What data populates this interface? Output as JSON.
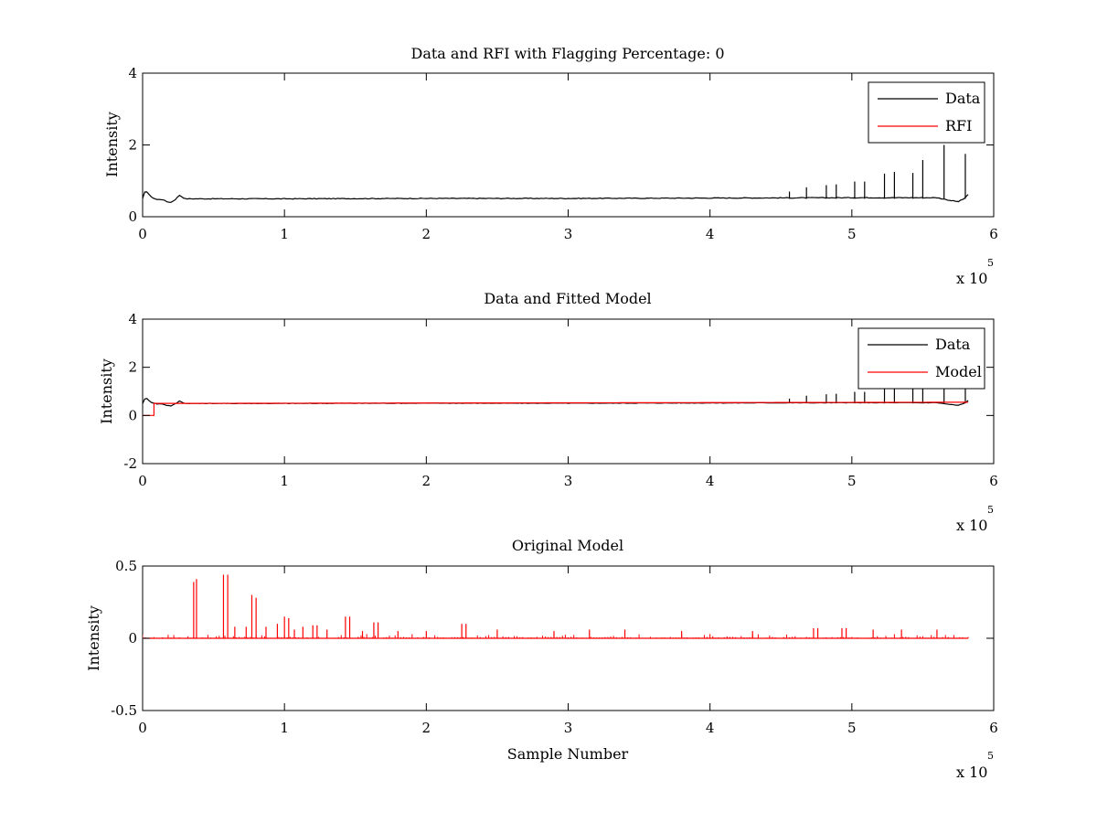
{
  "chart_data": [
    {
      "type": "line",
      "title": "Data and RFI with Flagging Percentage: 0",
      "xlabel": "",
      "ylabel": "Intensity",
      "xlim": [
        0,
        600000
      ],
      "ylim": [
        0,
        4
      ],
      "xticks": [
        "0",
        "1",
        "2",
        "3",
        "4",
        "5",
        "6"
      ],
      "yticks": [
        "0",
        "2",
        "4"
      ],
      "x_multiplier": {
        "base": "x 10",
        "exp": "5"
      },
      "grid": false,
      "legend": {
        "position": "top-right",
        "entries": [
          "Data",
          "RFI"
        ]
      },
      "series": [
        {
          "name": "Data",
          "color": "#000000",
          "baseline": 0.5,
          "x": [
            0,
            1500,
            3000,
            6000,
            10000,
            14000,
            17000,
            20000,
            23000,
            26000,
            30000,
            100000,
            200000,
            300000,
            400000,
            500000,
            560000,
            570000,
            575000,
            579000,
            582000
          ],
          "values": [
            0.5,
            0.68,
            0.7,
            0.55,
            0.48,
            0.48,
            0.42,
            0.4,
            0.48,
            0.6,
            0.5,
            0.5,
            0.51,
            0.51,
            0.52,
            0.53,
            0.53,
            0.45,
            0.42,
            0.5,
            0.62
          ],
          "spikes": [
            {
              "x": 456000,
              "y": 0.7
            },
            {
              "x": 468000,
              "y": 0.82
            },
            {
              "x": 482000,
              "y": 0.88
            },
            {
              "x": 489000,
              "y": 0.9
            },
            {
              "x": 502000,
              "y": 0.98
            },
            {
              "x": 509000,
              "y": 0.98
            },
            {
              "x": 523000,
              "y": 1.2
            },
            {
              "x": 530000,
              "y": 1.25
            },
            {
              "x": 543000,
              "y": 1.22
            },
            {
              "x": 550000,
              "y": 1.58
            },
            {
              "x": 565000,
              "y": 2.0
            },
            {
              "x": 580000,
              "y": 1.75
            }
          ]
        },
        {
          "name": "RFI",
          "color": "#ff0000",
          "values": []
        }
      ]
    },
    {
      "type": "line",
      "title": "Data and Fitted Model",
      "xlabel": "",
      "ylabel": "Intensity",
      "xlim": [
        0,
        600000
      ],
      "ylim": [
        -2,
        4
      ],
      "xticks": [
        "0",
        "1",
        "2",
        "3",
        "4",
        "5",
        "6"
      ],
      "yticks": [
        "-2",
        "0",
        "2",
        "4"
      ],
      "x_multiplier": {
        "base": "x 10",
        "exp": "5"
      },
      "grid": false,
      "legend": {
        "position": "top-right",
        "entries": [
          "Data",
          "Model"
        ]
      },
      "series": [
        {
          "name": "Data",
          "color": "#000000",
          "x": [
            0,
            1500,
            3000,
            6000,
            10000,
            14000,
            17000,
            20000,
            23000,
            26000,
            30000,
            100000,
            200000,
            300000,
            400000,
            500000,
            560000,
            570000,
            575000,
            579000,
            582000
          ],
          "values": [
            0.5,
            0.68,
            0.7,
            0.55,
            0.48,
            0.48,
            0.42,
            0.4,
            0.48,
            0.6,
            0.5,
            0.5,
            0.51,
            0.51,
            0.52,
            0.53,
            0.53,
            0.45,
            0.42,
            0.5,
            0.62
          ],
          "spikes": [
            {
              "x": 456000,
              "y": 0.7
            },
            {
              "x": 468000,
              "y": 0.82
            },
            {
              "x": 482000,
              "y": 0.88
            },
            {
              "x": 489000,
              "y": 0.9
            },
            {
              "x": 502000,
              "y": 0.98
            },
            {
              "x": 509000,
              "y": 0.98
            },
            {
              "x": 523000,
              "y": 1.2
            },
            {
              "x": 530000,
              "y": 1.25
            },
            {
              "x": 543000,
              "y": 1.22
            },
            {
              "x": 550000,
              "y": 1.58
            },
            {
              "x": 565000,
              "y": 2.0
            },
            {
              "x": 580000,
              "y": 1.75
            }
          ]
        },
        {
          "name": "Model",
          "color": "#ff0000",
          "x": [
            0,
            8000,
            8000,
            582000
          ],
          "values": [
            0.0,
            0.0,
            0.5,
            0.55
          ]
        }
      ]
    },
    {
      "type": "line",
      "title": "Original Model",
      "xlabel": "Sample Number",
      "ylabel": "Intensity",
      "xlim": [
        0,
        600000
      ],
      "ylim": [
        -0.5,
        0.5
      ],
      "xticks": [
        "0",
        "1",
        "2",
        "3",
        "4",
        "5",
        "6"
      ],
      "yticks": [
        "-0.5",
        "0",
        "0.5"
      ],
      "x_multiplier": {
        "base": "x 10",
        "exp": "5"
      },
      "grid": false,
      "series": [
        {
          "color": "#ff0000",
          "baseline": 0.0,
          "x_range": [
            0,
            582000
          ],
          "spikes": [
            {
              "x": 36000,
              "y": 0.39
            },
            {
              "x": 38000,
              "y": 0.41
            },
            {
              "x": 57000,
              "y": 0.44
            },
            {
              "x": 60000,
              "y": 0.44
            },
            {
              "x": 77000,
              "y": 0.3
            },
            {
              "x": 80000,
              "y": 0.28
            },
            {
              "x": 65000,
              "y": 0.08
            },
            {
              "x": 73000,
              "y": 0.08
            },
            {
              "x": 87000,
              "y": 0.08
            },
            {
              "x": 95000,
              "y": 0.1
            },
            {
              "x": 100000,
              "y": 0.15
            },
            {
              "x": 103000,
              "y": 0.14
            },
            {
              "x": 107000,
              "y": 0.06
            },
            {
              "x": 113000,
              "y": 0.08
            },
            {
              "x": 120000,
              "y": 0.09
            },
            {
              "x": 123000,
              "y": 0.09
            },
            {
              "x": 130000,
              "y": 0.06
            },
            {
              "x": 143000,
              "y": 0.15
            },
            {
              "x": 146000,
              "y": 0.15
            },
            {
              "x": 155000,
              "y": 0.05
            },
            {
              "x": 163000,
              "y": 0.11
            },
            {
              "x": 166000,
              "y": 0.11
            },
            {
              "x": 180000,
              "y": 0.05
            },
            {
              "x": 200000,
              "y": 0.05
            },
            {
              "x": 225000,
              "y": 0.1
            },
            {
              "x": 228000,
              "y": 0.1
            },
            {
              "x": 250000,
              "y": 0.06
            },
            {
              "x": 290000,
              "y": 0.05
            },
            {
              "x": 315000,
              "y": 0.06
            },
            {
              "x": 340000,
              "y": 0.06
            },
            {
              "x": 380000,
              "y": 0.05
            },
            {
              "x": 430000,
              "y": 0.05
            },
            {
              "x": 473000,
              "y": 0.07
            },
            {
              "x": 476000,
              "y": 0.07
            },
            {
              "x": 493000,
              "y": 0.07
            },
            {
              "x": 496000,
              "y": 0.07
            },
            {
              "x": 515000,
              "y": 0.06
            },
            {
              "x": 535000,
              "y": 0.06
            },
            {
              "x": 560000,
              "y": 0.06
            }
          ]
        }
      ]
    }
  ]
}
